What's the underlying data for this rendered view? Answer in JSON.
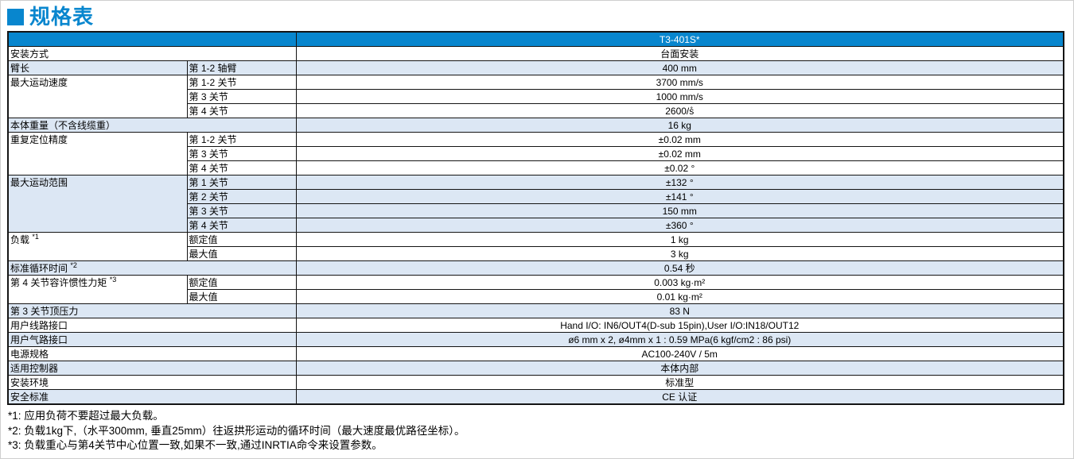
{
  "page_title": "规格表",
  "colors": {
    "accent": "#0886CE",
    "row_shade": "#DCE7F4",
    "header_text": "#FFFFFF",
    "border": "#141414"
  },
  "table": {
    "model": "T3-401S*",
    "groups": [
      {
        "label": "安装方式",
        "rows": [
          {
            "value": "台面安装"
          }
        ]
      },
      {
        "label": "臂长",
        "rows": [
          {
            "sub": "第 1-2 轴臂",
            "value": "400 mm"
          }
        ]
      },
      {
        "label": "最大运动速度",
        "rows": [
          {
            "sub": "第 1-2 关节",
            "value": "3700 mm/s"
          },
          {
            "sub": "第 3 关节",
            "value": "1000 mm/s"
          },
          {
            "sub": "第 4 关节",
            "value": "2600/s̊"
          }
        ]
      },
      {
        "label": "本体重量（不含线缆重）",
        "rows": [
          {
            "value": "16 kg"
          }
        ]
      },
      {
        "label": "重复定位精度",
        "rows": [
          {
            "sub": "第 1-2 关节",
            "value": "±0.02 mm"
          },
          {
            "sub": "第 3 关节",
            "value": "±0.02 mm"
          },
          {
            "sub": "第 4 关节",
            "value": "±0.02 °"
          }
        ]
      },
      {
        "label": "最大运动范围",
        "rows": [
          {
            "sub": "第 1 关节",
            "value": "±132 °"
          },
          {
            "sub": "第 2 关节",
            "value": "±141 °"
          },
          {
            "sub": "第 3 关节",
            "value": "150 mm"
          },
          {
            "sub": "第 4 关节",
            "value": "±360 °"
          }
        ]
      },
      {
        "label": "负载",
        "note": "*1",
        "rows": [
          {
            "sub": "额定值",
            "value": "1 kg"
          },
          {
            "sub": "最大值",
            "value": "3 kg"
          }
        ]
      },
      {
        "label": "标准循环时间",
        "note": "*2",
        "rows": [
          {
            "value": "0.54 秒"
          }
        ]
      },
      {
        "label": "第 4 关节容许惯性力矩",
        "note": "*3",
        "rows": [
          {
            "sub": "额定值",
            "value": "0.003 kg·m²"
          },
          {
            "sub": "最大值",
            "value": "0.01 kg·m²"
          }
        ]
      },
      {
        "label": "第 3 关节顶压力",
        "rows": [
          {
            "value": "83 N"
          }
        ]
      },
      {
        "label": "用户线路接口",
        "rows": [
          {
            "value": "Hand I/O: IN6/OUT4(D-sub 15pin),User I/O:IN18/OUT12"
          }
        ]
      },
      {
        "label": "用户气路接口",
        "rows": [
          {
            "value": "ø6 mm x 2, ø4mm x 1 : 0.59 MPa(6 kgf/cm2 : 86 psi)"
          }
        ]
      },
      {
        "label": "电源规格",
        "rows": [
          {
            "value": "AC100-240V / 5m"
          }
        ]
      },
      {
        "label": "适用控制器",
        "rows": [
          {
            "value": "本体内部"
          }
        ]
      },
      {
        "label": "安装环境",
        "rows": [
          {
            "value": "标准型"
          }
        ]
      },
      {
        "label": "安全标准",
        "rows": [
          {
            "value": "CE 认证"
          }
        ]
      }
    ]
  },
  "footnotes": [
    "*1: 应用负荷不要超过最大负载。",
    "*2: 负载1kg下,（水平300mm, 垂直25mm）往返拱形运动的循环时间（最大速度最优路径坐标）。",
    "*3: 负载重心与第4关节中心位置一致,如果不一致,通过INRTIA命令来设置参数。"
  ]
}
